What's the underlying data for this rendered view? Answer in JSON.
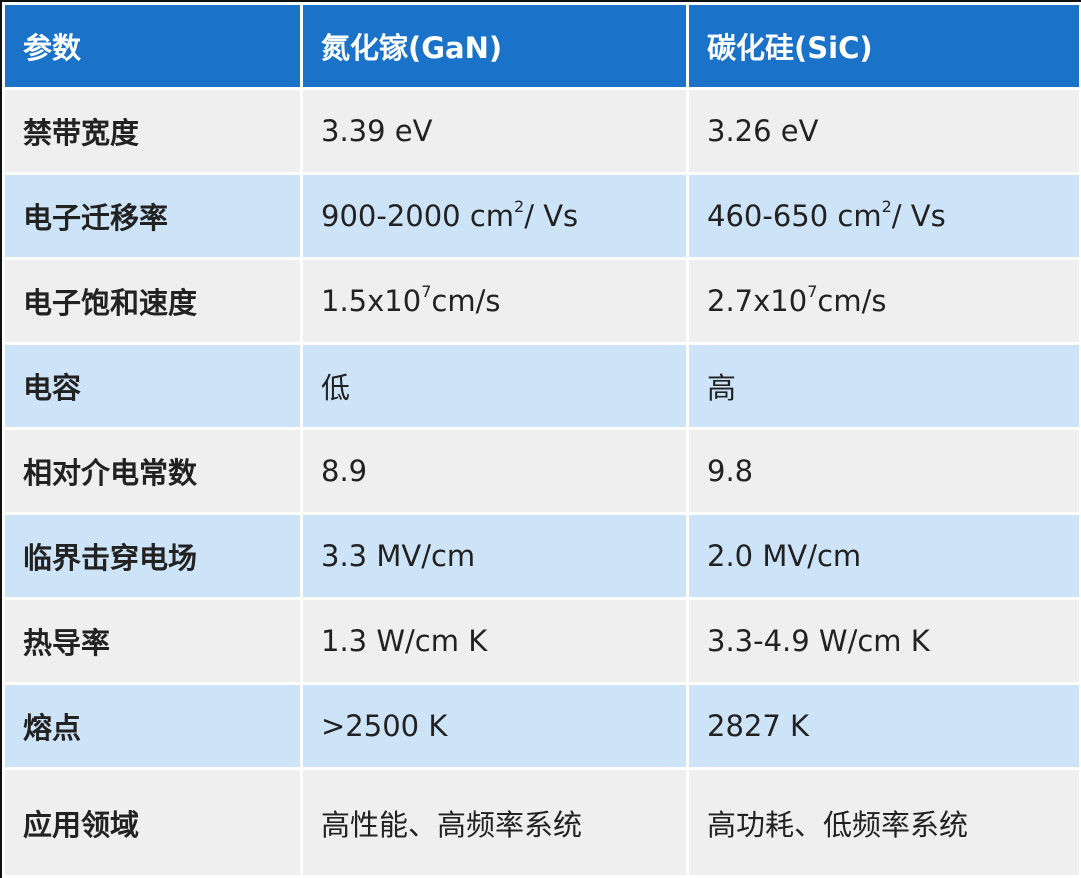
{
  "headers": [
    "参数",
    "氮化镓(GaN)",
    "碳化硅(SiC)"
  ],
  "colors": {
    "header": "#1a73c8",
    "row_gray": "#efefef",
    "row_blue": "#cde4f8"
  },
  "rows": [
    {
      "param": "禁带宽度",
      "gan": "3.39 eV",
      "sic": "3.26 eV"
    },
    {
      "param": "电子迁移率",
      "gan": "900-2000 cm",
      "gan_sup": "2",
      "gan_tail": "/ Vs",
      "sic": "460-650 cm",
      "sic_sup": "2",
      "sic_tail": "/ Vs"
    },
    {
      "param": "电子饱和速度",
      "gan": "1.5x10",
      "gan_sup": "7",
      "gan_tail": "cm/s",
      "sic": "2.7x10",
      "sic_sup": "7",
      "sic_tail": "cm/s"
    },
    {
      "param": "电容",
      "gan": "低",
      "sic": "高"
    },
    {
      "param": "相对介电常数",
      "gan": "8.9",
      "sic": "9.8"
    },
    {
      "param": "临界击穿电场",
      "gan": "3.3 MV/cm",
      "sic": "2.0 MV/cm"
    },
    {
      "param": "热导率",
      "gan": "1.3 W/cm K",
      "sic": "3.3-4.9 W/cm K"
    },
    {
      "param": "熔点",
      "gan": ">2500 K",
      "sic": "2827 K"
    },
    {
      "param": "应用领域",
      "gan": "高性能、高频率系统",
      "sic": "高功耗、低频率系统"
    }
  ]
}
